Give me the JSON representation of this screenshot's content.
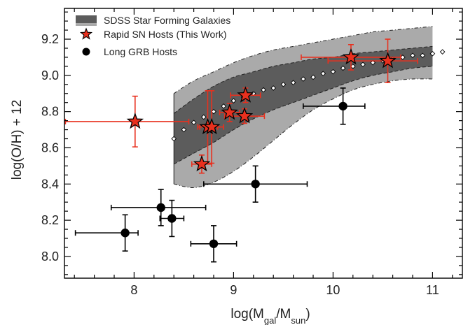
{
  "chart_data": {
    "type": "scatter",
    "title": "",
    "xlabel": "log(M",
    "xlabel_sub1": "gal",
    "xlabel_mid": "/M",
    "xlabel_sub2": "sun",
    "xlabel_end": ")",
    "ylabel": "log(O/H) + 12",
    "xlim": [
      7.3,
      11.3
    ],
    "ylim": [
      7.88,
      9.37
    ],
    "xticks": [
      8,
      9,
      10,
      11
    ],
    "yticks": [
      8.0,
      8.2,
      8.4,
      8.6,
      8.8,
      9.0,
      9.2
    ],
    "xtick_labels": [
      "8",
      "9",
      "10",
      "11"
    ],
    "ytick_labels": [
      "8.0",
      "8.2",
      "8.4",
      "8.6",
      "8.8",
      "9.0",
      "9.2"
    ],
    "grid": false,
    "legend_position": "top-left",
    "legend": [
      {
        "label": "SDSS Star Forming Galaxies",
        "marker": "band"
      },
      {
        "label": "Rapid SN Hosts (This Work)",
        "marker": "star"
      },
      {
        "label": "Long GRB Hosts",
        "marker": "circle"
      }
    ],
    "sdss_band": {
      "x": [
        8.4,
        8.6,
        8.8,
        9.0,
        9.2,
        9.4,
        9.6,
        9.8,
        10.0,
        10.2,
        10.4,
        10.6,
        10.8,
        11.0
      ],
      "outer_upper": [
        8.9,
        8.97,
        9.02,
        9.07,
        9.11,
        9.14,
        9.16,
        9.18,
        9.2,
        9.22,
        9.24,
        9.25,
        9.26,
        9.27
      ],
      "outer_lower": [
        8.4,
        8.38,
        8.41,
        8.47,
        8.55,
        8.64,
        8.73,
        8.81,
        8.87,
        8.92,
        8.95,
        8.97,
        8.98,
        8.98
      ],
      "inner_upper": [
        8.79,
        8.87,
        8.94,
        8.99,
        9.02,
        9.05,
        9.07,
        9.09,
        9.1,
        9.12,
        9.13,
        9.14,
        9.15,
        9.16
      ],
      "inner_lower": [
        8.51,
        8.57,
        8.63,
        8.7,
        8.76,
        8.81,
        8.85,
        8.89,
        8.93,
        8.97,
        9.0,
        9.02,
        9.04,
        9.05
      ]
    },
    "sdss_median": {
      "x": [
        8.4,
        8.5,
        8.6,
        8.7,
        8.8,
        8.9,
        9.0,
        9.1,
        9.2,
        9.3,
        9.4,
        9.5,
        9.6,
        9.7,
        9.8,
        9.9,
        10.0,
        10.1,
        10.2,
        10.3,
        10.4,
        10.5,
        10.6,
        10.7,
        10.8,
        10.9,
        11.0,
        11.1
      ],
      "y": [
        8.65,
        8.7,
        8.74,
        8.77,
        8.8,
        8.83,
        8.86,
        8.88,
        8.9,
        8.92,
        8.93,
        8.95,
        8.96,
        8.98,
        8.99,
        9.01,
        9.02,
        9.04,
        9.05,
        9.06,
        9.07,
        9.08,
        9.09,
        9.1,
        9.11,
        9.11,
        9.12,
        9.13
      ]
    },
    "series": [
      {
        "name": "Rapid SN Hosts (This Work)",
        "marker": "star",
        "color": "#e8301e",
        "points": [
          {
            "x": 8.01,
            "y": 8.745,
            "xerr": [
              0.7,
              0.54
            ],
            "yerr": [
              0.14,
              0.14
            ]
          },
          {
            "x": 8.68,
            "y": 8.51,
            "xerr": [
              0.1,
              0.1
            ],
            "yerr": [
              0.05,
              0.05
            ]
          },
          {
            "x": 8.74,
            "y": 8.715,
            "xerr": [
              0.1,
              0.1
            ],
            "yerr": [
              0.2,
              0.2
            ]
          },
          {
            "x": 8.78,
            "y": 8.715,
            "xerr": [
              0.12,
              0.12
            ],
            "yerr": [
              0.2,
              0.2
            ]
          },
          {
            "x": 8.96,
            "y": 8.795,
            "xerr": [
              0.1,
              0.1
            ],
            "yerr": [
              0.05,
              0.05
            ]
          },
          {
            "x": 9.12,
            "y": 8.89,
            "xerr": [
              0.15,
              0.15
            ],
            "yerr": [
              0.04,
              0.04
            ]
          },
          {
            "x": 9.11,
            "y": 8.775,
            "xerr": [
              0.2,
              0.2
            ],
            "yerr": [
              0.04,
              0.04
            ]
          },
          {
            "x": 10.18,
            "y": 9.1,
            "xerr": [
              0.5,
              0.5
            ],
            "yerr": [
              0.07,
              0.07
            ]
          },
          {
            "x": 10.55,
            "y": 9.08,
            "xerr": [
              0.6,
              0.3
            ],
            "yerr": [
              0.12,
              0.12
            ]
          }
        ]
      },
      {
        "name": "Long GRB Hosts",
        "marker": "circle",
        "color": "#000000",
        "points": [
          {
            "x": 7.91,
            "y": 8.13,
            "xerr": [
              0.5,
              0.13
            ],
            "yerr": [
              0.1,
              0.1
            ]
          },
          {
            "x": 8.27,
            "y": 8.27,
            "xerr": [
              0.5,
              0.45
            ],
            "yerr": [
              0.1,
              0.1
            ]
          },
          {
            "x": 8.38,
            "y": 8.21,
            "xerr": [
              0.12,
              0.12
            ],
            "yerr": [
              0.1,
              0.1
            ]
          },
          {
            "x": 8.8,
            "y": 8.07,
            "xerr": [
              0.23,
              0.23
            ],
            "yerr": [
              0.1,
              0.1
            ]
          },
          {
            "x": 9.22,
            "y": 8.4,
            "xerr": [
              0.52,
              0.52
            ],
            "yerr": [
              0.1,
              0.1
            ]
          },
          {
            "x": 10.1,
            "y": 8.83,
            "xerr": [
              0.4,
              0.22
            ],
            "yerr": [
              0.1,
              0.1
            ]
          }
        ]
      }
    ],
    "colors": {
      "band_outer": "#aaaaaa",
      "band_inner": "#5c5c5c",
      "star_fill": "#e8301e",
      "error_red": "#e8301e",
      "grb": "#000000"
    }
  }
}
